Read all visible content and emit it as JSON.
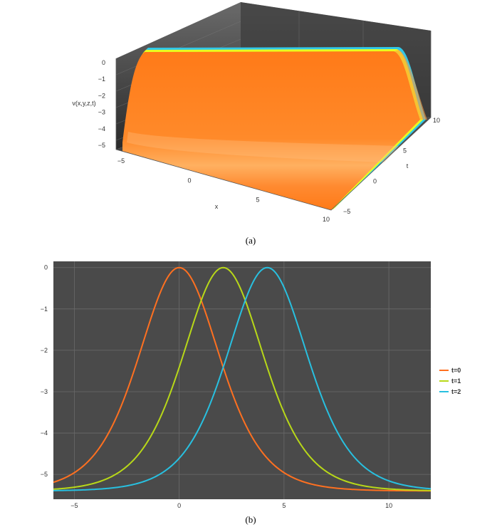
{
  "captions": {
    "top": "(a)",
    "bottom": "(b)"
  },
  "chart_data": [
    {
      "type": "surface3d",
      "zlabel": "v(x,y,z,t)",
      "xlabel": "x",
      "ylabel": "t",
      "z_ticks": [
        "0",
        "−1",
        "−2",
        "−3",
        "−4",
        "−5"
      ],
      "x_ticks": [
        "−5",
        "0",
        "5",
        "10"
      ],
      "t_ticks": [
        "−5",
        "0",
        "5",
        "10"
      ],
      "xlim": [
        -5,
        10
      ],
      "tlim": [
        -5,
        10
      ],
      "zlim": [
        -5.4,
        0
      ],
      "colors": {
        "surface": "#ff8020",
        "highlight": "#ffb060",
        "edge_yellow": "#e8ff20",
        "edge_cyan": "#30c8e8",
        "box": "#4a4a4a"
      }
    },
    {
      "type": "line",
      "xlim": [
        -6,
        12
      ],
      "ylim": [
        -5.6,
        0.15
      ],
      "x_ticks": [
        "−5",
        "0",
        "5",
        "10"
      ],
      "x_tick_values": [
        -5,
        0,
        5,
        10
      ],
      "y_ticks": [
        "0",
        "−1",
        "−2",
        "−3",
        "−4",
        "−5"
      ],
      "y_tick_values": [
        0,
        -1,
        -2,
        -3,
        -4,
        -5
      ],
      "grid": true,
      "legend_position": "right",
      "background": "#4a4a4a",
      "series": [
        {
          "name": "t=0",
          "color": "#ff7020",
          "shift": 0
        },
        {
          "name": "t=1",
          "color": "#b8d818",
          "shift": 2.1
        },
        {
          "name": "t=2",
          "color": "#28c0e0",
          "shift": 4.2
        }
      ],
      "model": {
        "baseline": -5.4,
        "amplitude": 5.4,
        "width": 2.6
      }
    }
  ]
}
